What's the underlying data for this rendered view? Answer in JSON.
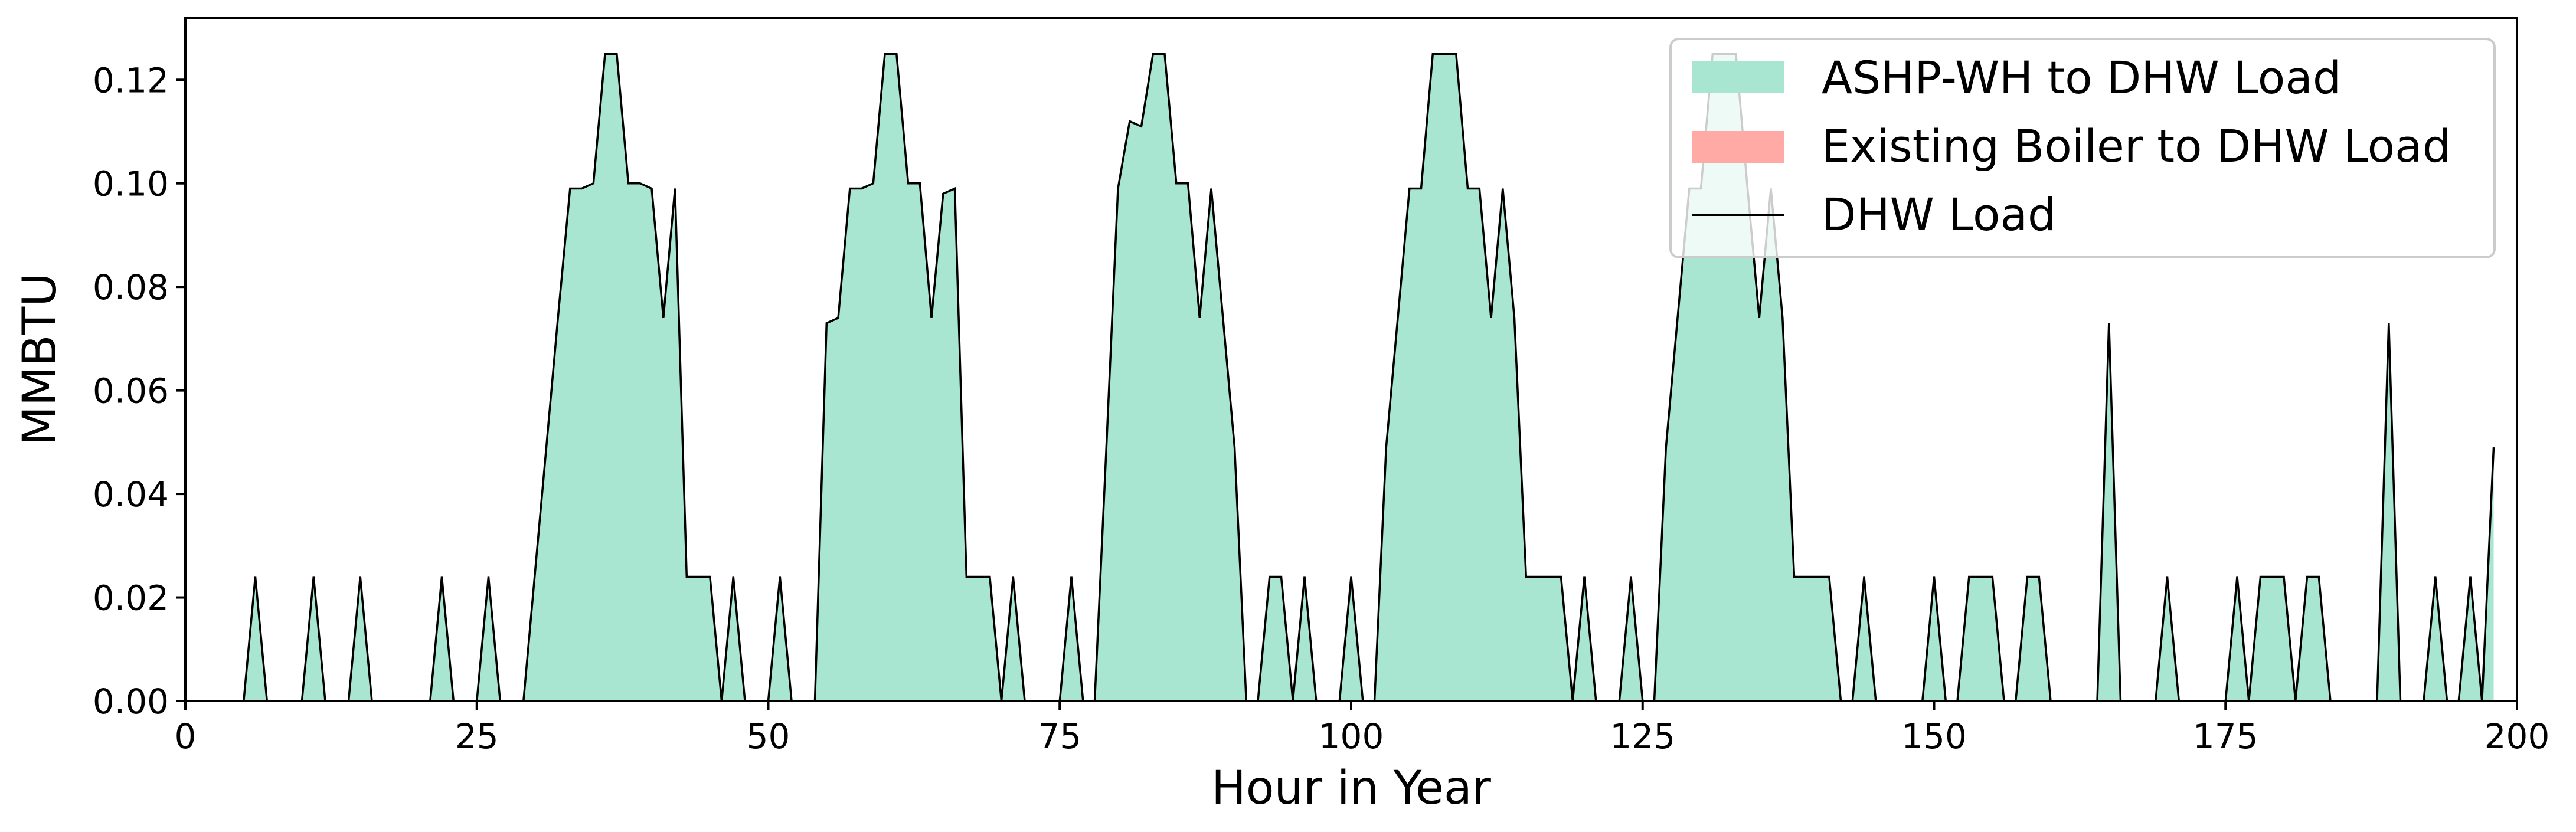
{
  "chart_data": {
    "type": "area",
    "xlabel": "Hour in Year",
    "ylabel": "MMBTU",
    "xlim": [
      0,
      200
    ],
    "ylim": [
      0,
      0.132
    ],
    "xticks": [
      0,
      25,
      50,
      75,
      100,
      125,
      150,
      175,
      200
    ],
    "xtick_labels": [
      "0",
      "25",
      "50",
      "75",
      "100",
      "125",
      "150",
      "175",
      "200"
    ],
    "yticks": [
      0.0,
      0.02,
      0.04,
      0.06,
      0.08,
      0.1,
      0.12
    ],
    "ytick_labels": [
      "0.00",
      "0.02",
      "0.04",
      "0.06",
      "0.08",
      "0.10",
      "0.12"
    ],
    "grid": false,
    "legend_position": "top-right",
    "colors": {
      "ashp_fill": "#a8e6d2",
      "boiler_fill": "#ffaaa5",
      "load_line": "#000000"
    },
    "legend": {
      "ashp": "ASHP-WH to DHW Load",
      "boiler": "Existing Boiler to DHW Load",
      "load": "DHW Load"
    },
    "series": [
      {
        "name": "ASHP-WH to DHW Load",
        "style": "stacked-area",
        "values": [
          0,
          0,
          0,
          0,
          0,
          0,
          0.024,
          0,
          0,
          0,
          0,
          0.024,
          0,
          0,
          0,
          0.024,
          0,
          0,
          0,
          0,
          0,
          0,
          0.024,
          0,
          0,
          0,
          0.024,
          0,
          0,
          0,
          0.025,
          0.05,
          0.075,
          0.099,
          0.099,
          0.1,
          0.125,
          0.125,
          0.1,
          0.1,
          0.099,
          0.074,
          0.099,
          0.024,
          0.024,
          0.024,
          0,
          0.024,
          0,
          0,
          0,
          0.024,
          0,
          0,
          0,
          0.073,
          0.074,
          0.099,
          0.099,
          0.1,
          0.125,
          0.125,
          0.1,
          0.1,
          0.074,
          0.098,
          0.099,
          0.024,
          0.024,
          0.024,
          0,
          0.024,
          0,
          0,
          0,
          0,
          0.024,
          0,
          0,
          0.049,
          0.099,
          0.112,
          0.111,
          0.125,
          0.125,
          0.1,
          0.1,
          0.074,
          0.099,
          0.074,
          0.049,
          0,
          0,
          0.024,
          0.024,
          0,
          0.024,
          0,
          0,
          0,
          0.024,
          0,
          0,
          0.049,
          0.074,
          0.099,
          0.099,
          0.125,
          0.125,
          0.125,
          0.099,
          0.099,
          0.074,
          0.099,
          0.074,
          0.024,
          0.024,
          0.024,
          0.024,
          0,
          0.024,
          0,
          0,
          0,
          0.024,
          0,
          0,
          0.049,
          0.074,
          0.099,
          0.099,
          0.125,
          0.125,
          0.125,
          0.099,
          0.074,
          0.099,
          0.074,
          0.024,
          0.024,
          0.024,
          0.024,
          0,
          0,
          0.024,
          0,
          0,
          0,
          0,
          0,
          0.024,
          0,
          0,
          0.024,
          0.024,
          0.024,
          0,
          0,
          0.024,
          0.024,
          0,
          0,
          0,
          0,
          0,
          0.073,
          0,
          0,
          0,
          0,
          0.024,
          0,
          0,
          0,
          0,
          0,
          0.024,
          0,
          0.024,
          0.024,
          0.024,
          0,
          0.024,
          0.024,
          0,
          0,
          0,
          0,
          0,
          0.073,
          0,
          0,
          0,
          0.024,
          0,
          0,
          0.024,
          0,
          0.049
        ]
      },
      {
        "name": "Existing Boiler to DHW Load",
        "style": "stacked-area",
        "values": [
          0
        ]
      },
      {
        "name": "DHW Load",
        "style": "line",
        "values": [
          0,
          0,
          0,
          0,
          0,
          0,
          0.024,
          0,
          0,
          0,
          0,
          0.024,
          0,
          0,
          0,
          0.024,
          0,
          0,
          0,
          0,
          0,
          0,
          0.024,
          0,
          0,
          0,
          0.024,
          0,
          0,
          0,
          0.025,
          0.05,
          0.075,
          0.099,
          0.099,
          0.1,
          0.125,
          0.125,
          0.1,
          0.1,
          0.099,
          0.074,
          0.099,
          0.024,
          0.024,
          0.024,
          0,
          0.024,
          0,
          0,
          0,
          0.024,
          0,
          0,
          0,
          0.073,
          0.074,
          0.099,
          0.099,
          0.1,
          0.125,
          0.125,
          0.1,
          0.1,
          0.074,
          0.098,
          0.099,
          0.024,
          0.024,
          0.024,
          0,
          0.024,
          0,
          0,
          0,
          0,
          0.024,
          0,
          0,
          0.049,
          0.099,
          0.112,
          0.111,
          0.125,
          0.125,
          0.1,
          0.1,
          0.074,
          0.099,
          0.074,
          0.049,
          0,
          0,
          0.024,
          0.024,
          0,
          0.024,
          0,
          0,
          0,
          0.024,
          0,
          0,
          0.049,
          0.074,
          0.099,
          0.099,
          0.125,
          0.125,
          0.125,
          0.099,
          0.099,
          0.074,
          0.099,
          0.074,
          0.024,
          0.024,
          0.024,
          0.024,
          0,
          0.024,
          0,
          0,
          0,
          0.024,
          0,
          0,
          0.049,
          0.074,
          0.099,
          0.099,
          0.125,
          0.125,
          0.125,
          0.099,
          0.074,
          0.099,
          0.074,
          0.024,
          0.024,
          0.024,
          0.024,
          0,
          0,
          0.024,
          0,
          0,
          0,
          0,
          0,
          0.024,
          0,
          0,
          0.024,
          0.024,
          0.024,
          0,
          0,
          0.024,
          0.024,
          0,
          0,
          0,
          0,
          0,
          0.073,
          0,
          0,
          0,
          0,
          0.024,
          0,
          0,
          0,
          0,
          0,
          0.024,
          0,
          0.024,
          0.024,
          0.024,
          0,
          0.024,
          0.024,
          0,
          0,
          0,
          0,
          0,
          0.073,
          0,
          0,
          0,
          0.024,
          0,
          0,
          0.024,
          0,
          0.049
        ]
      }
    ]
  }
}
